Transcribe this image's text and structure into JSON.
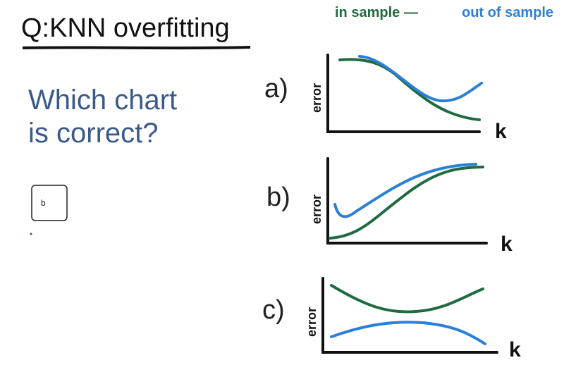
{
  "header": {
    "title": "Q:KNN overfitting"
  },
  "legend": {
    "in_sample": "in sample —",
    "out_of_sample": "out of sample"
  },
  "question": {
    "line1": "Which chart",
    "line2": "is correct?"
  },
  "answer_box": {
    "value": "b"
  },
  "options": [
    {
      "label": "a)",
      "y_label": "error",
      "x_label": "k"
    },
    {
      "label": "b)",
      "y_label": "error",
      "x_label": "k"
    },
    {
      "label": "c)",
      "y_label": "error",
      "x_label": "k"
    }
  ]
}
